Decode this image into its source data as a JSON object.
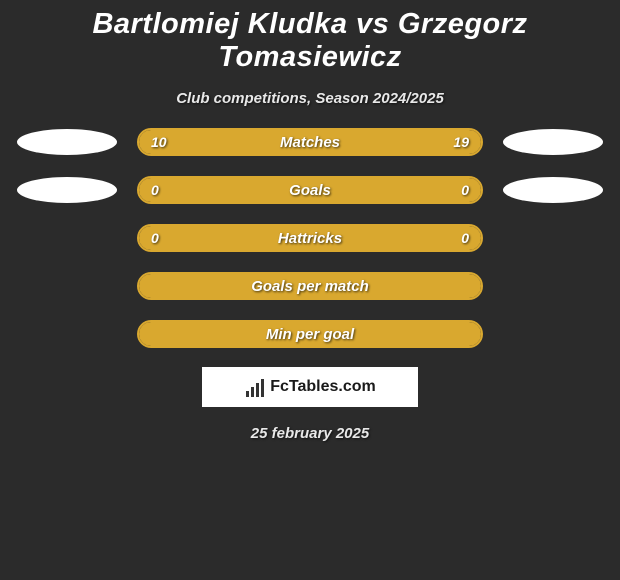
{
  "title": "Bartlomiej Kludka vs Grzegorz Tomasiewicz",
  "subtitle": "Club competitions, Season 2024/2025",
  "date": "25 february 2025",
  "logo_text": "FcTables.com",
  "colors": {
    "background": "#2b2b2b",
    "accent": "#d9a82f",
    "text": "#ffffff",
    "avatar": "#ffffff",
    "logo_bg": "#ffffff"
  },
  "rows": [
    {
      "label": "Matches",
      "left_value": "10",
      "right_value": "19",
      "left_pct": 34.5,
      "right_pct": 65.5,
      "show_left_avatar": true,
      "show_right_avatar": true,
      "show_left_value": true,
      "show_right_value": true,
      "fill_mode": "split"
    },
    {
      "label": "Goals",
      "left_value": "0",
      "right_value": "0",
      "left_pct": 0,
      "right_pct": 0,
      "show_left_avatar": true,
      "show_right_avatar": true,
      "show_left_value": true,
      "show_right_value": true,
      "fill_mode": "full"
    },
    {
      "label": "Hattricks",
      "left_value": "0",
      "right_value": "0",
      "left_pct": 0,
      "right_pct": 0,
      "show_left_avatar": false,
      "show_right_avatar": false,
      "show_left_value": true,
      "show_right_value": true,
      "fill_mode": "full"
    },
    {
      "label": "Goals per match",
      "left_value": "",
      "right_value": "",
      "left_pct": 0,
      "right_pct": 0,
      "show_left_avatar": false,
      "show_right_avatar": false,
      "show_left_value": false,
      "show_right_value": false,
      "fill_mode": "full"
    },
    {
      "label": "Min per goal",
      "left_value": "",
      "right_value": "",
      "left_pct": 0,
      "right_pct": 0,
      "show_left_avatar": false,
      "show_right_avatar": false,
      "show_left_value": false,
      "show_right_value": false,
      "fill_mode": "full"
    }
  ]
}
